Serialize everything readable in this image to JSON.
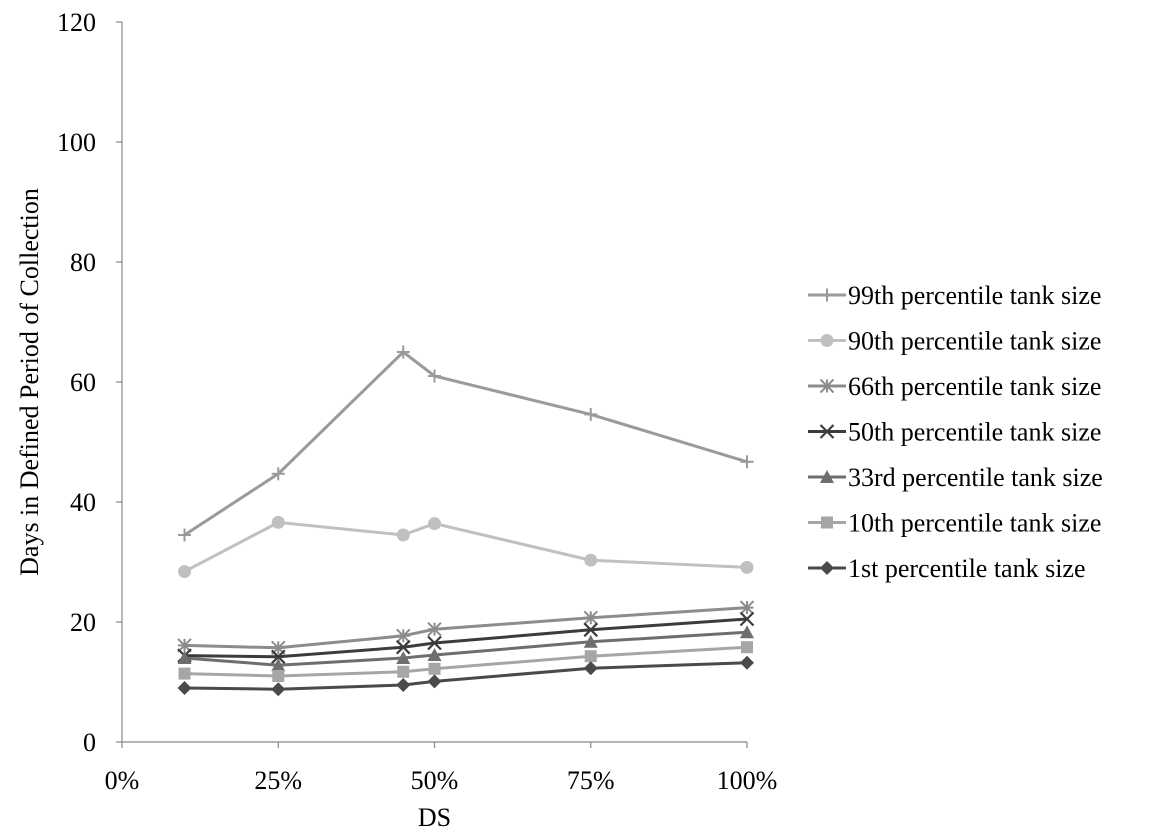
{
  "chart_data": {
    "type": "line",
    "title": "",
    "xlabel": "DS",
    "ylabel": "Days in Defined Period of Collection",
    "xlim": [
      0,
      100
    ],
    "ylim": [
      0,
      120
    ],
    "xticks": [
      0,
      25,
      50,
      75,
      100
    ],
    "xtick_labels": [
      "0%",
      "25%",
      "50%",
      "75%",
      "100%"
    ],
    "yticks": [
      0,
      20,
      40,
      60,
      80,
      100,
      120
    ],
    "ytick_labels": [
      "0",
      "20",
      "40",
      "60",
      "80",
      "100",
      "120"
    ],
    "grid": false,
    "legend_position": "right",
    "x": [
      10,
      25,
      45,
      50,
      75,
      100
    ],
    "series": [
      {
        "name": "99th percentile tank size",
        "marker": "plus",
        "color": "#9a9a9a",
        "values": [
          34.5,
          44.7,
          65.0,
          61.0,
          54.6,
          46.7
        ]
      },
      {
        "name": "90th percentile tank size",
        "marker": "circle",
        "color": "#c0c0c0",
        "values": [
          28.4,
          36.6,
          34.5,
          36.4,
          30.3,
          29.1
        ]
      },
      {
        "name": "66th percentile tank size",
        "marker": "asterisk",
        "color": "#8c8c8c",
        "values": [
          16.1,
          15.7,
          17.7,
          18.8,
          20.7,
          22.4
        ]
      },
      {
        "name": "50th percentile tank size",
        "marker": "x",
        "color": "#3c3c3c",
        "values": [
          14.4,
          14.2,
          15.8,
          16.5,
          18.7,
          20.5
        ]
      },
      {
        "name": "33rd percentile tank size",
        "marker": "triangle",
        "color": "#6e6e6e",
        "values": [
          14.0,
          12.8,
          14.0,
          14.5,
          16.7,
          18.3
        ]
      },
      {
        "name": "10th percentile tank size",
        "marker": "square",
        "color": "#a6a6a6",
        "values": [
          11.4,
          11.0,
          11.7,
          12.2,
          14.3,
          15.8
        ]
      },
      {
        "name": "1st percentile tank size",
        "marker": "diamond",
        "color": "#4a4a4a",
        "values": [
          9.0,
          8.8,
          9.5,
          10.1,
          12.3,
          13.2
        ]
      }
    ]
  }
}
